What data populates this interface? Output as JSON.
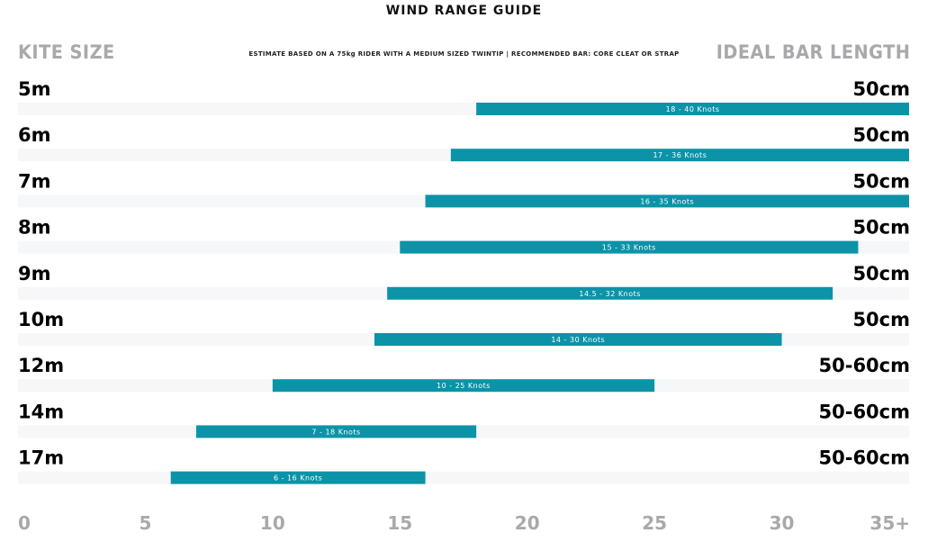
{
  "chart_data": {
    "type": "bar",
    "title": "WIND RANGE GUIDE",
    "subtitle": "ESTIMATE BASED ON A 75kg RIDER WITH A MEDIUM SIZED TWINTIP  |  RECOMMENDED BAR: CORE CLEAT OR STRAP",
    "left_header": "KITE SIZE",
    "right_header": "IDEAL BAR LENGTH",
    "xlim": [
      0,
      35
    ],
    "x_ticks": [
      {
        "value": 0,
        "label": "0"
      },
      {
        "value": 5,
        "label": "5"
      },
      {
        "value": 10,
        "label": "10"
      },
      {
        "value": 15,
        "label": "15"
      },
      {
        "value": 20,
        "label": "20"
      },
      {
        "value": 25,
        "label": "25"
      },
      {
        "value": 30,
        "label": "30"
      },
      {
        "value": 35,
        "label": "35+"
      }
    ],
    "rows": [
      {
        "size": "5m",
        "bar": "50cm",
        "start": 18,
        "end": 40,
        "label": "18 - 40 Knots"
      },
      {
        "size": "6m",
        "bar": "50cm",
        "start": 17,
        "end": 36,
        "label": "17 - 36 Knots"
      },
      {
        "size": "7m",
        "bar": "50cm",
        "start": 16,
        "end": 35,
        "label": "16 - 35 Knots"
      },
      {
        "size": "8m",
        "bar": "50cm",
        "start": 15,
        "end": 33,
        "label": "15 - 33 Knots"
      },
      {
        "size": "9m",
        "bar": "50cm",
        "start": 14.5,
        "end": 32,
        "label": "14.5 - 32 Knots"
      },
      {
        "size": "10m",
        "bar": "50cm",
        "start": 14,
        "end": 30,
        "label": "14 - 30 Knots"
      },
      {
        "size": "12m",
        "bar": "50-60cm",
        "start": 10,
        "end": 25,
        "label": "10 - 25 Knots"
      },
      {
        "size": "14m",
        "bar": "50-60cm",
        "start": 7,
        "end": 18,
        "label": "7 - 18 Knots"
      },
      {
        "size": "17m",
        "bar": "50-60cm",
        "start": 6,
        "end": 16,
        "label": "6 - 16 Knots"
      }
    ],
    "colors": {
      "bar": "#0c93a8",
      "track": "#f6f7f9",
      "tick": "#a7a9ac",
      "text": "#000000"
    }
  }
}
